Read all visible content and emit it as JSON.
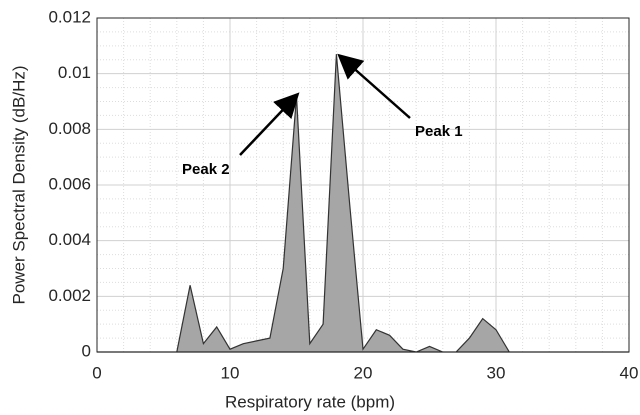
{
  "chart_data": {
    "type": "area",
    "x": [
      0,
      1,
      2,
      3,
      4,
      5,
      6,
      7,
      8,
      9,
      10,
      11,
      12,
      13,
      14,
      15,
      16,
      17,
      18,
      19,
      20,
      21,
      22,
      23,
      24,
      25,
      26,
      27,
      28,
      29,
      30,
      31,
      32,
      33,
      34,
      35,
      36,
      37,
      38,
      39,
      40
    ],
    "values": [
      0,
      0,
      0,
      0,
      0,
      0,
      0,
      0.0024,
      0.0003,
      0.0009,
      0.0001,
      0.0003,
      0.0004,
      0.0005,
      0.003,
      0.0092,
      0.0003,
      0.001,
      0.0107,
      0.0053,
      0.0001,
      0.0008,
      0.0006,
      0.0001,
      0,
      0.0002,
      0,
      0,
      0.0005,
      0.0012,
      0.0008,
      0,
      0,
      0,
      0,
      0,
      0,
      0,
      0,
      0,
      0
    ],
    "color": "#a6a6a6",
    "xlim": [
      0,
      40
    ],
    "xticks": [
      0,
      10,
      20,
      30,
      40
    ],
    "ylim": [
      0,
      0.012
    ],
    "yticks": [
      0,
      0.002,
      0.004,
      0.006,
      0.008,
      0.01,
      0.012
    ],
    "xlabel": "Respiratory rate (bpm)",
    "ylabel": "Power Spectral Density (dB/Hz)",
    "annotations": [
      "Peak 1",
      "Peak 2"
    ],
    "grid": true,
    "minor_grid": true
  }
}
